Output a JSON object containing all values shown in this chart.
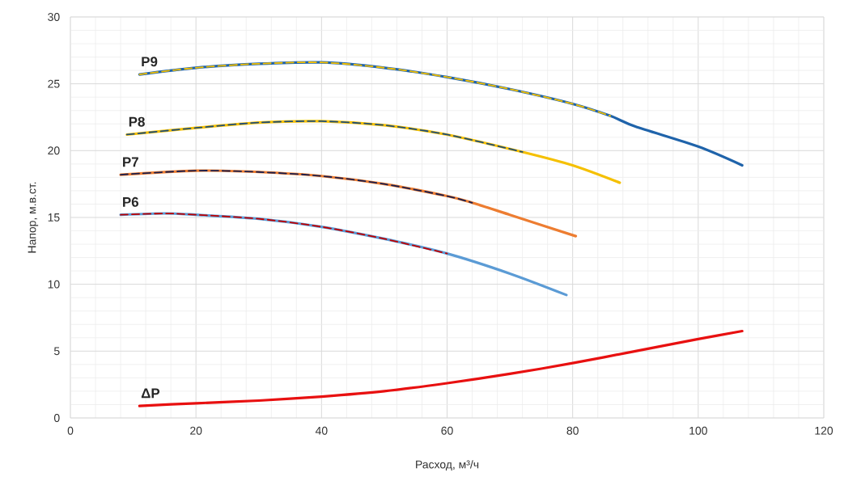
{
  "chart_data": {
    "type": "line",
    "xlabel": "Расход, м³/ч",
    "ylabel": "Напор, м.в.ст.",
    "xlim": [
      0,
      120
    ],
    "xticks": [
      0,
      20,
      40,
      60,
      80,
      100,
      120
    ],
    "ylim": [
      0,
      30
    ],
    "yticks": [
      0,
      5,
      10,
      15,
      20,
      25,
      30
    ],
    "grid": true,
    "marker": "none",
    "line_style": "solid",
    "series": [
      {
        "name": "P9",
        "color": "#1f63aa",
        "x": [
          11,
          20,
          30,
          40,
          50,
          60,
          70,
          80,
          86,
          90,
          100,
          107
        ],
        "values": [
          25.7,
          26.2,
          26.5,
          26.6,
          26.2,
          25.5,
          24.6,
          23.5,
          22.6,
          21.8,
          20.3,
          18.9
        ]
      },
      {
        "color": "#f5c000",
        "line_style": "dashed",
        "x": [
          11,
          20,
          30,
          40,
          50,
          60,
          70,
          80,
          86
        ],
        "values": [
          25.7,
          26.2,
          26.5,
          26.6,
          26.2,
          25.5,
          24.6,
          23.5,
          22.6
        ]
      },
      {
        "name": "P8",
        "color": "#f5c000",
        "x": [
          9,
          20,
          30,
          40,
          50,
          60,
          72,
          80,
          87.5
        ],
        "values": [
          21.2,
          21.7,
          22.1,
          22.2,
          21.9,
          21.2,
          19.9,
          18.9,
          17.6
        ]
      },
      {
        "color": "#1f4e79",
        "line_style": "dashed",
        "x": [
          9,
          20,
          30,
          40,
          50,
          60,
          72
        ],
        "values": [
          21.2,
          21.7,
          22.1,
          22.2,
          21.9,
          21.2,
          19.9
        ]
      },
      {
        "name": "P7",
        "color": "#ed7d31",
        "x": [
          8,
          20,
          30,
          40,
          50,
          60,
          64,
          70,
          80.5
        ],
        "values": [
          18.2,
          18.5,
          18.4,
          18.1,
          17.5,
          16.6,
          16.1,
          15.2,
          13.6
        ]
      },
      {
        "color": "#1a1f4e",
        "line_style": "dashed",
        "x": [
          8,
          20,
          30,
          40,
          50,
          60,
          64
        ],
        "values": [
          18.2,
          18.5,
          18.4,
          18.1,
          17.5,
          16.6,
          16.1
        ]
      },
      {
        "name": "P6",
        "color": "#5b9bd5",
        "x": [
          8,
          15,
          20,
          30,
          40,
          50,
          60,
          70,
          79
        ],
        "values": [
          15.2,
          15.3,
          15.2,
          14.9,
          14.3,
          13.4,
          12.3,
          10.8,
          9.2
        ]
      },
      {
        "color": "#c00000",
        "line_style": "dashed",
        "x": [
          8,
          15,
          20,
          30,
          40,
          50,
          60
        ],
        "values": [
          15.2,
          15.3,
          15.2,
          14.9,
          14.3,
          13.4,
          12.3
        ]
      },
      {
        "name": "ΔP",
        "color": "#e81010",
        "x": [
          11,
          20,
          30,
          40,
          50,
          60,
          70,
          80,
          90,
          100,
          107
        ],
        "values": [
          0.9,
          1.1,
          1.3,
          1.6,
          2.0,
          2.6,
          3.3,
          4.1,
          5.0,
          5.9,
          6.5
        ]
      }
    ]
  }
}
